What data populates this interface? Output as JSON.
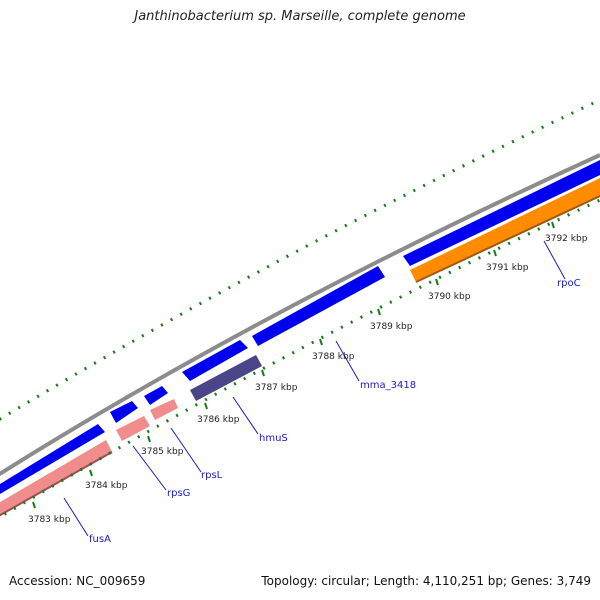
{
  "title": "Janthinobacterium sp. Marseille, complete genome",
  "footer": {
    "accession": "Accession: NC_009659",
    "summary": "Topology: circular; Length: 4,110,251 bp; Genes: 3,749"
  },
  "colors": {
    "backbone": "#8c8c8c",
    "forward_gene": "#0000f0",
    "reverse_gene_pink": "#f08c8c",
    "reverse_gene_orange": "#ff8c00",
    "reverse_gene_dark": "#4a4488",
    "tick": "#1a7a1a",
    "label_line": "#1a1acc"
  },
  "ticks": [
    {
      "label": "3783 kbp"
    },
    {
      "label": "3784 kbp"
    },
    {
      "label": "3785 kbp"
    },
    {
      "label": "3786 kbp"
    },
    {
      "label": "3787 kbp"
    },
    {
      "label": "3788 kbp"
    },
    {
      "label": "3789 kbp"
    },
    {
      "label": "3790 kbp"
    },
    {
      "label": "3791 kbp"
    },
    {
      "label": "3792 kbp"
    }
  ],
  "genes": [
    {
      "name": "fusA",
      "strand": "reverse",
      "color": "pink"
    },
    {
      "name": "rpsG",
      "strand": "reverse",
      "color": "pink"
    },
    {
      "name": "rpsL",
      "strand": "reverse",
      "color": "pink"
    },
    {
      "name": "hmuS",
      "strand": "reverse",
      "color": "dark"
    },
    {
      "name": "mma_3418",
      "strand": "forward",
      "color": "blue"
    },
    {
      "name": "rpoC",
      "strand": "reverse",
      "color": "orange"
    }
  ]
}
